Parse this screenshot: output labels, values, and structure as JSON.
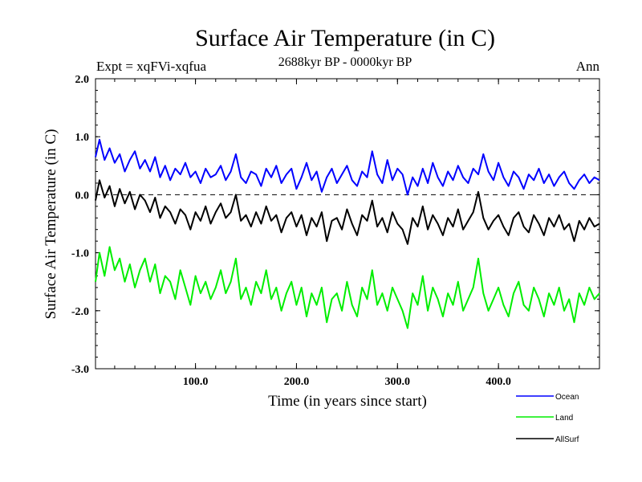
{
  "chart_data": {
    "type": "line",
    "title": "Surface Air Temperature (in C)",
    "subtitle": "2688kyr BP - 0000kyr BP",
    "experiment": "Expt = xqFVi-xqfua",
    "period": "Ann",
    "xlabel": "Time (in years since start)",
    "ylabel": "Surface Air Temperature (in C)",
    "xlim": [
      1,
      500
    ],
    "ylim": [
      -3.0,
      2.0
    ],
    "x_ticks": [
      100,
      200,
      300,
      400
    ],
    "x_tick_labels": [
      "100.0",
      "200.0",
      "300.0",
      "400.0"
    ],
    "y_ticks": [
      2.0,
      1.0,
      0.0,
      -1.0,
      -2.0,
      -3.0
    ],
    "y_tick_labels": [
      "2.0",
      "1.0",
      "0.0",
      "-1.0",
      "-2.0",
      "-3.0"
    ],
    "zero_line": 0.0,
    "series": [
      {
        "name": "Ocean",
        "color": "#0000ff",
        "x": [
          1,
          5,
          10,
          15,
          20,
          25,
          30,
          35,
          40,
          45,
          50,
          55,
          60,
          65,
          70,
          75,
          80,
          85,
          90,
          95,
          100,
          105,
          110,
          115,
          120,
          125,
          130,
          135,
          140,
          145,
          150,
          155,
          160,
          165,
          170,
          175,
          180,
          185,
          190,
          195,
          200,
          205,
          210,
          215,
          220,
          225,
          230,
          235,
          240,
          245,
          250,
          255,
          260,
          265,
          270,
          275,
          280,
          285,
          290,
          295,
          300,
          305,
          310,
          315,
          320,
          325,
          330,
          335,
          340,
          345,
          350,
          355,
          360,
          365,
          370,
          375,
          380,
          385,
          390,
          395,
          400,
          405,
          410,
          415,
          420,
          425,
          430,
          435,
          440,
          445,
          450,
          455,
          460,
          465,
          470,
          475,
          480,
          485,
          490,
          495,
          500
        ],
        "values": [
          0.65,
          0.95,
          0.6,
          0.8,
          0.55,
          0.7,
          0.4,
          0.6,
          0.75,
          0.45,
          0.6,
          0.4,
          0.65,
          0.3,
          0.5,
          0.25,
          0.45,
          0.35,
          0.55,
          0.3,
          0.4,
          0.2,
          0.45,
          0.3,
          0.35,
          0.5,
          0.25,
          0.4,
          0.7,
          0.3,
          0.2,
          0.4,
          0.35,
          0.15,
          0.45,
          0.3,
          0.5,
          0.2,
          0.35,
          0.45,
          0.1,
          0.3,
          0.55,
          0.25,
          0.4,
          0.05,
          0.3,
          0.45,
          0.2,
          0.35,
          0.5,
          0.25,
          0.15,
          0.4,
          0.3,
          0.75,
          0.35,
          0.2,
          0.6,
          0.25,
          0.45,
          0.35,
          0.0,
          0.3,
          0.15,
          0.45,
          0.2,
          0.55,
          0.3,
          0.15,
          0.4,
          0.25,
          0.5,
          0.3,
          0.2,
          0.45,
          0.35,
          0.7,
          0.4,
          0.25,
          0.55,
          0.3,
          0.15,
          0.4,
          0.3,
          0.1,
          0.35,
          0.25,
          0.45,
          0.2,
          0.35,
          0.15,
          0.3,
          0.4,
          0.2,
          0.1,
          0.25,
          0.35,
          0.2,
          0.3,
          0.25
        ]
      },
      {
        "name": "Land",
        "color": "#00ee00",
        "x": [
          1,
          5,
          10,
          15,
          20,
          25,
          30,
          35,
          40,
          45,
          50,
          55,
          60,
          65,
          70,
          75,
          80,
          85,
          90,
          95,
          100,
          105,
          110,
          115,
          120,
          125,
          130,
          135,
          140,
          145,
          150,
          155,
          160,
          165,
          170,
          175,
          180,
          185,
          190,
          195,
          200,
          205,
          210,
          215,
          220,
          225,
          230,
          235,
          240,
          245,
          250,
          255,
          260,
          265,
          270,
          275,
          280,
          285,
          290,
          295,
          300,
          305,
          310,
          315,
          320,
          325,
          330,
          335,
          340,
          345,
          350,
          355,
          360,
          365,
          370,
          375,
          380,
          385,
          390,
          395,
          400,
          405,
          410,
          415,
          420,
          425,
          430,
          435,
          440,
          445,
          450,
          455,
          460,
          465,
          470,
          475,
          480,
          485,
          490,
          495,
          500
        ],
        "values": [
          -1.5,
          -1.0,
          -1.4,
          -0.9,
          -1.3,
          -1.1,
          -1.5,
          -1.2,
          -1.6,
          -1.3,
          -1.1,
          -1.5,
          -1.2,
          -1.7,
          -1.4,
          -1.5,
          -1.8,
          -1.3,
          -1.6,
          -1.9,
          -1.4,
          -1.7,
          -1.5,
          -1.8,
          -1.6,
          -1.3,
          -1.7,
          -1.5,
          -1.1,
          -1.8,
          -1.6,
          -1.9,
          -1.5,
          -1.7,
          -1.3,
          -1.8,
          -1.6,
          -2.0,
          -1.7,
          -1.5,
          -1.9,
          -1.6,
          -2.1,
          -1.7,
          -1.9,
          -1.6,
          -2.2,
          -1.8,
          -1.7,
          -2.0,
          -1.5,
          -1.9,
          -2.1,
          -1.6,
          -1.8,
          -1.3,
          -1.9,
          -1.7,
          -2.0,
          -1.6,
          -1.8,
          -2.0,
          -2.3,
          -1.7,
          -1.9,
          -1.4,
          -2.0,
          -1.6,
          -1.8,
          -2.1,
          -1.7,
          -1.9,
          -1.5,
          -2.0,
          -1.8,
          -1.6,
          -1.1,
          -1.7,
          -2.0,
          -1.8,
          -1.6,
          -1.9,
          -2.1,
          -1.7,
          -1.5,
          -1.9,
          -2.0,
          -1.6,
          -1.8,
          -2.1,
          -1.7,
          -1.9,
          -1.6,
          -2.0,
          -1.8,
          -2.2,
          -1.7,
          -1.9,
          -1.6,
          -1.8,
          -1.7
        ]
      },
      {
        "name": "AllSurf",
        "color": "#000000",
        "x": [
          1,
          5,
          10,
          15,
          20,
          25,
          30,
          35,
          40,
          45,
          50,
          55,
          60,
          65,
          70,
          75,
          80,
          85,
          90,
          95,
          100,
          105,
          110,
          115,
          120,
          125,
          130,
          135,
          140,
          145,
          150,
          155,
          160,
          165,
          170,
          175,
          180,
          185,
          190,
          195,
          200,
          205,
          210,
          215,
          220,
          225,
          230,
          235,
          240,
          245,
          250,
          255,
          260,
          265,
          270,
          275,
          280,
          285,
          290,
          295,
          300,
          305,
          310,
          315,
          320,
          325,
          330,
          335,
          340,
          345,
          350,
          355,
          360,
          365,
          370,
          375,
          380,
          385,
          390,
          395,
          400,
          405,
          410,
          415,
          420,
          425,
          430,
          435,
          440,
          445,
          450,
          455,
          460,
          465,
          470,
          475,
          480,
          485,
          490,
          495,
          500
        ],
        "values": [
          -0.1,
          0.25,
          -0.05,
          0.15,
          -0.2,
          0.1,
          -0.15,
          0.05,
          -0.25,
          0.0,
          -0.1,
          -0.3,
          -0.05,
          -0.4,
          -0.2,
          -0.3,
          -0.5,
          -0.25,
          -0.35,
          -0.6,
          -0.3,
          -0.45,
          -0.2,
          -0.5,
          -0.3,
          -0.15,
          -0.4,
          -0.3,
          0.0,
          -0.45,
          -0.35,
          -0.55,
          -0.3,
          -0.5,
          -0.2,
          -0.45,
          -0.35,
          -0.65,
          -0.4,
          -0.3,
          -0.55,
          -0.35,
          -0.7,
          -0.4,
          -0.55,
          -0.3,
          -0.8,
          -0.45,
          -0.4,
          -0.6,
          -0.25,
          -0.5,
          -0.7,
          -0.35,
          -0.45,
          -0.1,
          -0.55,
          -0.4,
          -0.65,
          -0.3,
          -0.5,
          -0.6,
          -0.85,
          -0.4,
          -0.55,
          -0.2,
          -0.6,
          -0.35,
          -0.5,
          -0.7,
          -0.4,
          -0.55,
          -0.25,
          -0.6,
          -0.45,
          -0.3,
          0.05,
          -0.4,
          -0.6,
          -0.45,
          -0.35,
          -0.55,
          -0.7,
          -0.4,
          -0.3,
          -0.55,
          -0.65,
          -0.35,
          -0.5,
          -0.7,
          -0.4,
          -0.55,
          -0.35,
          -0.6,
          -0.5,
          -0.8,
          -0.45,
          -0.6,
          -0.4,
          -0.55,
          -0.5
        ]
      }
    ]
  }
}
